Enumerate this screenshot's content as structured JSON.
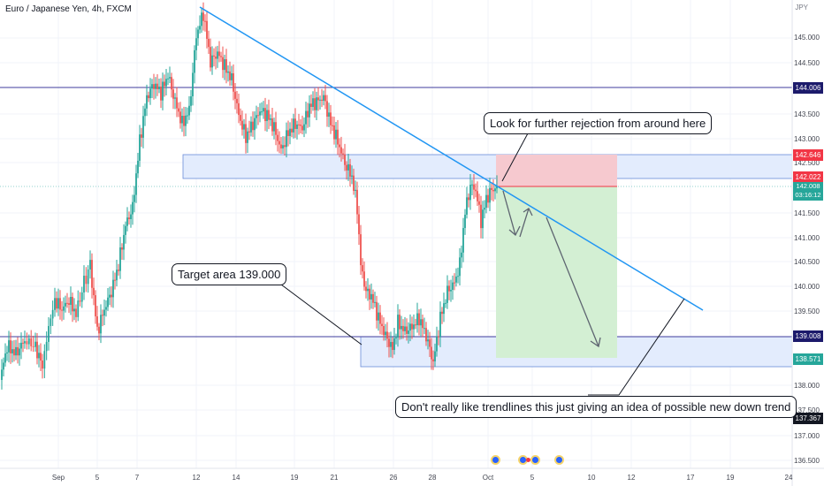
{
  "header": {
    "symbol_title": "Euro / Japanese Yen, 4h, FXCM",
    "currency": "JPY"
  },
  "price_axis": {
    "labels": [
      "145.000",
      "144.500",
      "143.500",
      "143.000",
      "142.500",
      "141.500",
      "141.000",
      "140.500",
      "140.000",
      "139.500",
      "138.000",
      "137.500",
      "137.000",
      "136.500"
    ],
    "badges": {
      "upper_level": "144.006",
      "stop_loss": "142.646",
      "entry": "142.022",
      "current_price": "142.008",
      "countdown": "03:16:12",
      "lower_level": "139.008",
      "target": "138.571",
      "low": "137.367"
    }
  },
  "time_axis": {
    "labels": [
      "Sep",
      "5",
      "7",
      "12",
      "14",
      "19",
      "21",
      "26",
      "28",
      "Oct",
      "5",
      "10",
      "12",
      "17",
      "19",
      "24"
    ]
  },
  "annotations": {
    "rejection_note": "Look for further rejection from around here",
    "target_note": "Target area 139.000",
    "trend_note": "Don't really like trendlines this just giving an idea of possible new down trend"
  },
  "colors": {
    "bull": "#26a69a",
    "bear": "#ef5350",
    "trendline": "#2196f3",
    "level_line": "#3f3d9c",
    "zone_fill": "#e3ecfd",
    "stop_zone": "#f6c9cf",
    "target_zone": "#d3efd3",
    "badge_red": "#f23645",
    "badge_navy": "#1c1a6b",
    "badge_green": "#26a69a"
  }
}
